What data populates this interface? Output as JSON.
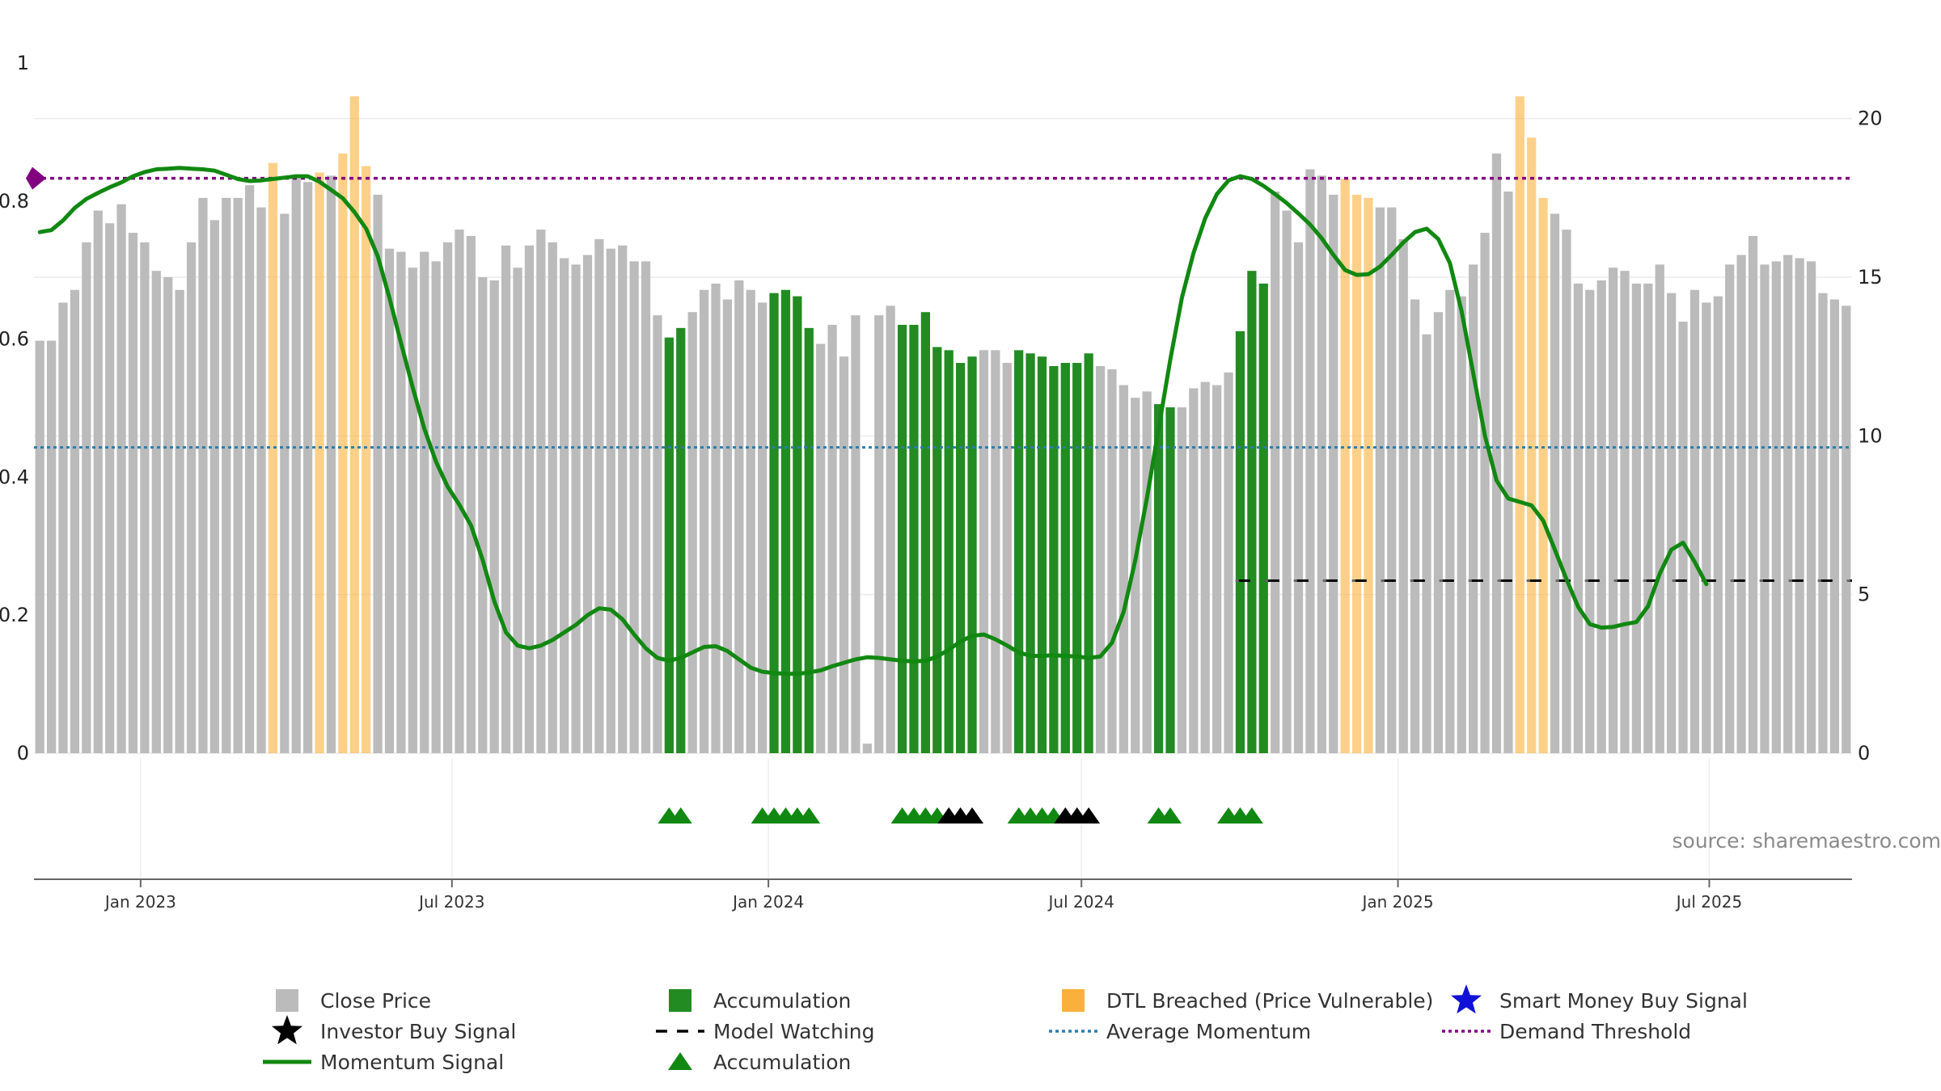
{
  "chart_data": {
    "type": "bar",
    "title": "",
    "x_range": [
      "2022-10-31",
      "2025-09-22"
    ],
    "x_tick_labels": [
      {
        "label": "Jan 2023",
        "date": "2023-01-01"
      },
      {
        "label": "Jul 2023",
        "date": "2023-07-01"
      },
      {
        "label": "Jan 2024",
        "date": "2024-01-01"
      },
      {
        "label": "Jul 2024",
        "date": "2024-07-01"
      },
      {
        "label": "Jan 2025",
        "date": "2025-01-01"
      },
      {
        "label": "Jul 2025",
        "date": "2025-07-01"
      }
    ],
    "y_left": {
      "range": [
        0,
        1
      ],
      "ticks": [
        0,
        0.2,
        0.4,
        0.6,
        0.8,
        1
      ],
      "tick_labels": [
        "0",
        "0.2",
        "0.4",
        "0.6",
        "0.8",
        "1"
      ]
    },
    "y_right": {
      "range": [
        0,
        21.75
      ],
      "ticks": [
        0,
        5,
        10,
        15,
        20
      ],
      "tick_labels": [
        "0",
        "5",
        "10",
        "15",
        "20"
      ]
    },
    "close_price": [
      13.0,
      13.0,
      14.2,
      14.6,
      16.1,
      17.1,
      16.7,
      17.3,
      16.4,
      16.1,
      15.2,
      15.0,
      14.6,
      16.1,
      17.5,
      16.8,
      17.5,
      17.5,
      17.9,
      17.2,
      18.6,
      17.0,
      18.1,
      18.0,
      18.3,
      18.2,
      18.9,
      20.7,
      18.5,
      17.6,
      15.9,
      15.8,
      15.3,
      15.8,
      15.5,
      16.1,
      16.5,
      16.3,
      15.0,
      14.9,
      16.0,
      15.3,
      16.0,
      16.5,
      16.1,
      15.6,
      15.4,
      15.7,
      16.2,
      15.9,
      16.0,
      15.5,
      15.5,
      13.8,
      13.1,
      13.4,
      13.9,
      14.6,
      14.8,
      14.3,
      14.9,
      14.6,
      14.2,
      14.5,
      14.6,
      14.4,
      13.4,
      12.9,
      13.5,
      12.5,
      13.8,
      0.3,
      13.8,
      14.1,
      13.5,
      13.5,
      13.9,
      12.8,
      12.7,
      12.3,
      12.5,
      12.7,
      12.7,
      12.3,
      12.7,
      12.6,
      12.5,
      12.2,
      12.3,
      12.3,
      12.6,
      12.2,
      12.1,
      11.6,
      11.2,
      11.4,
      11.0,
      10.9,
      10.9,
      11.5,
      11.7,
      11.6,
      12.0,
      13.3,
      15.2,
      14.8,
      17.7,
      17.1,
      16.1,
      18.4,
      18.2,
      17.6,
      18.1,
      17.6,
      17.5,
      17.2,
      17.2,
      16.2,
      14.3,
      13.2,
      13.9,
      14.6,
      14.4,
      15.4,
      16.4,
      18.9,
      17.7,
      20.7,
      19.4,
      17.5,
      17.0,
      16.5,
      14.8,
      14.6,
      14.9,
      15.3,
      15.2,
      14.8,
      14.8,
      15.4,
      14.5,
      13.6,
      14.6,
      14.2,
      14.4,
      15.4,
      15.7,
      16.3,
      15.4,
      15.5,
      15.7,
      15.6,
      15.5,
      14.5,
      14.3,
      14.1
    ],
    "series": [
      {
        "name": "Close Price",
        "color": "#bbbbbb",
        "marker": "bar"
      },
      {
        "name": "Accumulation",
        "color": "#228b22",
        "marker": "bar",
        "bar_indices": [
          54,
          55,
          63,
          64,
          65,
          66,
          74,
          75,
          76,
          77,
          78,
          79,
          80,
          84,
          85,
          86,
          87,
          88,
          89,
          90,
          96,
          97,
          103,
          104,
          105
        ]
      },
      {
        "name": "DTL Breached (Price Vulnerable)",
        "color": "#fbb03b",
        "marker": "bar",
        "bar_indices": [
          20,
          24,
          26,
          27,
          28,
          112,
          113,
          114,
          127,
          128,
          129
        ]
      },
      {
        "name": "Smart Money Buy Signal",
        "color": "#1010d8",
        "marker": "star",
        "indices": []
      },
      {
        "name": "Investor Buy Signal",
        "color": "#000000",
        "marker": "triangle",
        "indices": [
          78,
          79,
          80,
          88,
          89,
          90
        ]
      },
      {
        "name": "Model Watching",
        "color": "#000000",
        "marker": "dashed-line",
        "value": 0.25,
        "from_index": 103
      },
      {
        "name": "Average Momentum",
        "color": "#2e7dab",
        "marker": "dotted-line",
        "value": 0.443
      },
      {
        "name": "Demand Threshold",
        "color": "#800080",
        "marker": "dotted-line",
        "value": 0.833
      },
      {
        "name": "Momentum Signal",
        "color": "#118811",
        "marker": "line",
        "values": [
          0.755,
          0.758,
          0.772,
          0.79,
          0.803,
          0.812,
          0.82,
          0.827,
          0.836,
          0.842,
          0.846,
          0.847,
          0.848,
          0.847,
          0.846,
          0.844,
          0.838,
          0.832,
          0.829,
          0.83,
          0.832,
          0.834,
          0.836,
          0.836,
          0.828,
          0.816,
          0.804,
          0.784,
          0.76,
          0.72,
          0.66,
          0.594,
          0.53,
          0.47,
          0.422,
          0.386,
          0.36,
          0.33,
          0.28,
          0.22,
          0.175,
          0.156,
          0.152,
          0.156,
          0.164,
          0.175,
          0.186,
          0.2,
          0.21,
          0.208,
          0.194,
          0.172,
          0.152,
          0.138,
          0.134,
          0.138,
          0.146,
          0.154,
          0.155,
          0.148,
          0.136,
          0.124,
          0.118,
          0.116,
          0.115,
          0.115,
          0.117,
          0.12,
          0.126,
          0.131,
          0.136,
          0.139,
          0.138,
          0.136,
          0.134,
          0.133,
          0.134,
          0.14,
          0.15,
          0.162,
          0.17,
          0.172,
          0.165,
          0.156,
          0.146,
          0.141,
          0.141,
          0.142,
          0.141,
          0.14,
          0.138,
          0.14,
          0.16,
          0.205,
          0.28,
          0.37,
          0.47,
          0.57,
          0.66,
          0.725,
          0.775,
          0.81,
          0.83,
          0.836,
          0.832,
          0.822,
          0.81,
          0.797,
          0.782,
          0.766,
          0.746,
          0.722,
          0.7,
          0.693,
          0.694,
          0.705,
          0.722,
          0.74,
          0.755,
          0.76,
          0.745,
          0.71,
          0.64,
          0.55,
          0.46,
          0.395,
          0.369,
          0.364,
          0.359,
          0.337,
          0.295,
          0.252,
          0.212,
          0.187,
          0.182,
          0.183,
          0.187,
          0.19,
          0.213,
          0.26,
          0.295,
          0.305,
          0.277,
          0.245
        ]
      },
      {
        "name": "Accumulation",
        "color": "#118811",
        "marker": "triangle",
        "indices": [
          54,
          55,
          62,
          63,
          64,
          65,
          66,
          74,
          75,
          76,
          77,
          84,
          85,
          86,
          87,
          96,
          97,
          102,
          103,
          104
        ]
      }
    ],
    "legend_position": "bottom-center"
  },
  "annotations": {
    "source": "source: sharemaestro.com"
  }
}
